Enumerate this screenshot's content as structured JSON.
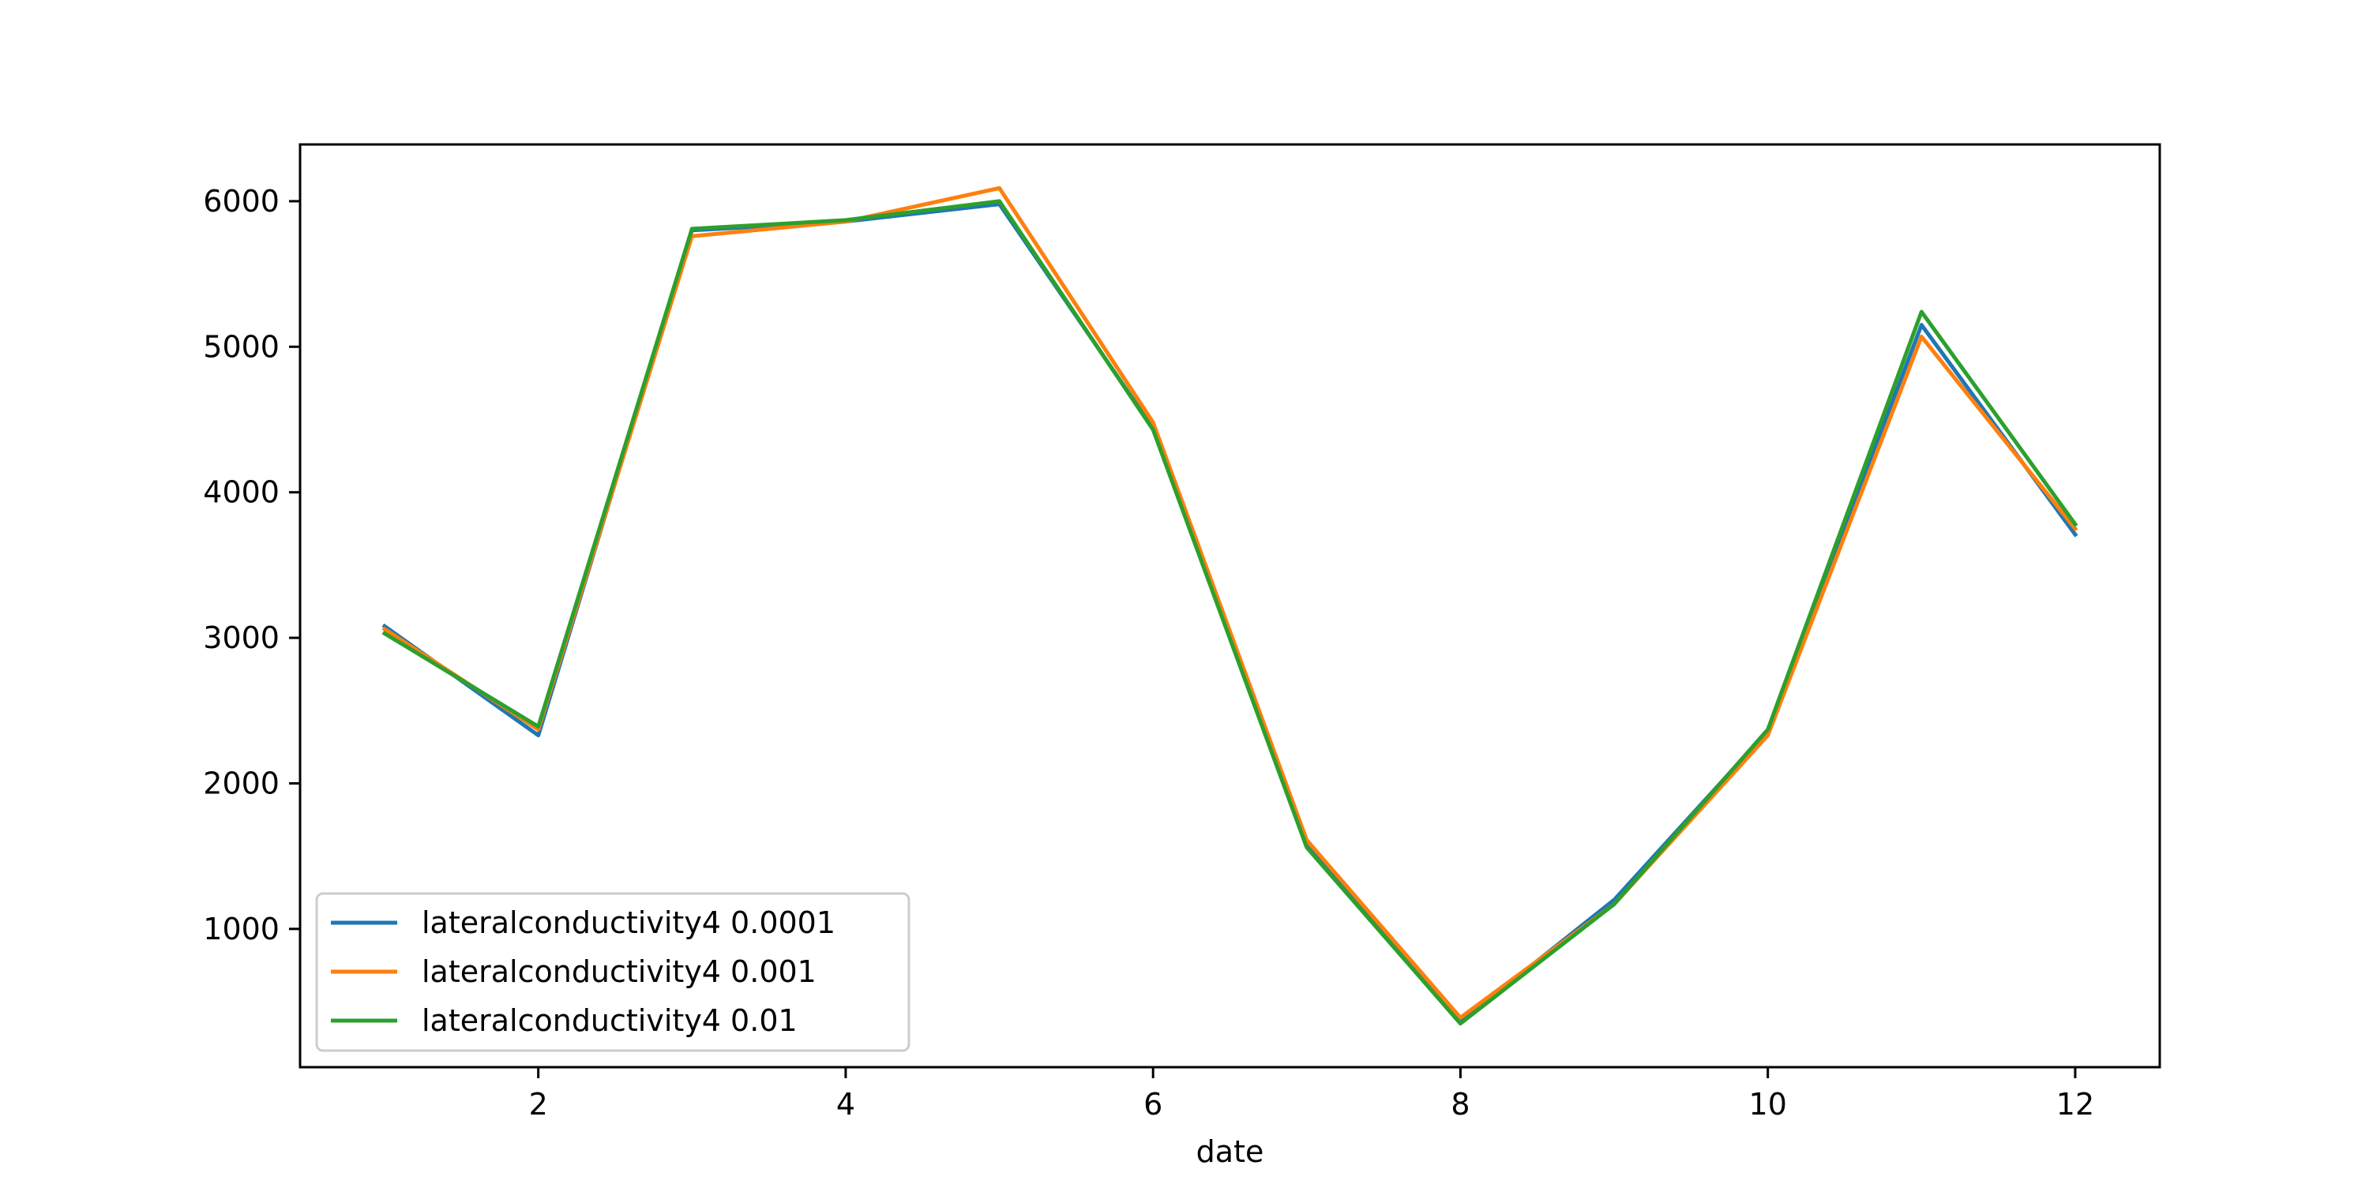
{
  "chart_data": {
    "type": "line",
    "title": "",
    "xlabel": "date",
    "ylabel": "",
    "x": [
      1,
      2,
      3,
      4,
      5,
      6,
      7,
      8,
      9,
      10,
      11,
      12
    ],
    "xlim": [
      0.45,
      12.55
    ],
    "ylim": [
      50,
      6390
    ],
    "x_ticks": [
      2,
      4,
      6,
      8,
      10,
      12
    ],
    "y_ticks": [
      1000,
      2000,
      3000,
      4000,
      5000,
      6000
    ],
    "grid": false,
    "legend_position": "lower-left",
    "series": [
      {
        "name": "lateralconductivity4 0.0001",
        "color": "#1f77b4",
        "values": [
          3080,
          2330,
          5800,
          5860,
          5980,
          4440,
          1570,
          360,
          1200,
          2360,
          5150,
          3710
        ]
      },
      {
        "name": "lateralconductivity4 0.001",
        "color": "#ff7f0e",
        "values": [
          3060,
          2370,
          5760,
          5860,
          6090,
          4480,
          1610,
          390,
          1170,
          2330,
          5070,
          3750
        ]
      },
      {
        "name": "lateralconductivity4 0.01",
        "color": "#2ca02c",
        "values": [
          3030,
          2390,
          5810,
          5870,
          6000,
          4430,
          1560,
          350,
          1170,
          2370,
          5240,
          3780
        ]
      }
    ]
  }
}
